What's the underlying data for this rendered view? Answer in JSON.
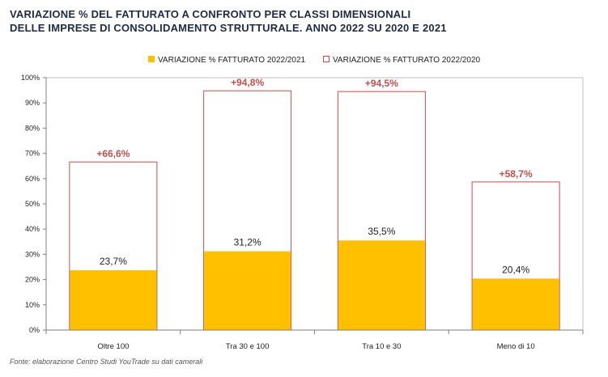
{
  "title_lines": [
    "VARIAZIONE % DEL FATTURATO A CONFRONTO PER CLASSI DIMENSIONALI",
    "DELLE IMPRESE DI CONSOLIDAMENTO STRUTTURALE. ANNO 2022 SU 2020 E 2021"
  ],
  "source": "Fonte: elaborazione Centro Studi YouTrade su dati camerali",
  "colors": {
    "fill_series": "#ffc000",
    "outline_series": "#c0504d",
    "label_outline": "#c0504d"
  },
  "chart_data": {
    "type": "bar",
    "categories": [
      "Oltre 100",
      "Tra 30 e 100",
      "Tra 10 e 30",
      "Meno di 10"
    ],
    "series": [
      {
        "name": "VARIAZIONE % FATTURATO 2022/2021",
        "values": [
          23.7,
          31.2,
          35.5,
          20.4
        ],
        "labels": [
          "23,7%",
          "31,2%",
          "35,5%",
          "20,4%"
        ]
      },
      {
        "name": "VARIAZIONE % FATTURATO 2022/2020",
        "values": [
          66.6,
          94.8,
          94.5,
          58.7
        ],
        "labels": [
          "+66,6%",
          "+94,8%",
          "+94,5%",
          "+58,7%"
        ]
      }
    ],
    "ylim": [
      0,
      100
    ],
    "yticks": [
      0,
      10,
      20,
      30,
      40,
      50,
      60,
      70,
      80,
      90,
      100
    ],
    "ytick_labels": [
      "0%",
      "10%",
      "20%",
      "30%",
      "40%",
      "50%",
      "60%",
      "70%",
      "80%",
      "90%",
      "100%"
    ],
    "overlap": "full",
    "legend_position": "top"
  }
}
